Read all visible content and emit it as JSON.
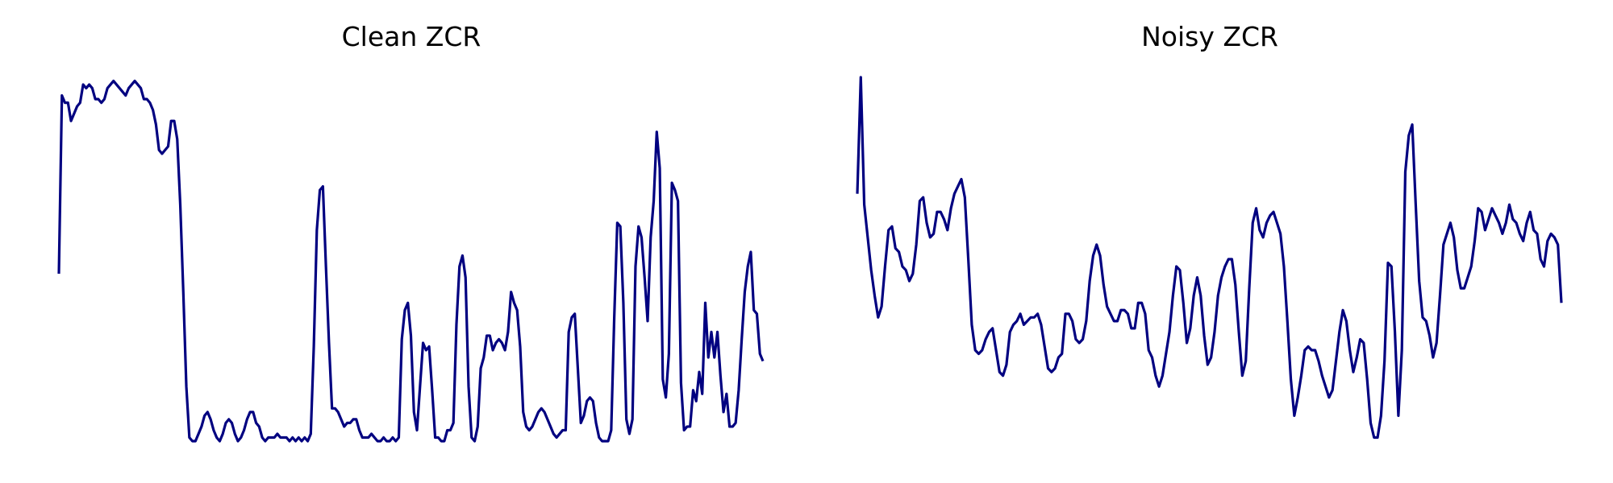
{
  "chart_data": [
    {
      "type": "line",
      "title": "Clean ZCR",
      "xlabel": "",
      "ylabel": "",
      "xlim": [
        0,
        199
      ],
      "ylim": [
        0,
        1
      ],
      "grid": false,
      "axes_visible": false,
      "line_color": "#000080",
      "series": [
        {
          "values": [
            0.46,
            0.95,
            0.93,
            0.93,
            0.88,
            0.9,
            0.92,
            0.93,
            0.98,
            0.97,
            0.98,
            0.97,
            0.94,
            0.94,
            0.93,
            0.94,
            0.97,
            0.98,
            0.99,
            0.98,
            0.97,
            0.96,
            0.95,
            0.97,
            0.98,
            0.99,
            0.98,
            0.97,
            0.94,
            0.94,
            0.93,
            0.91,
            0.87,
            0.8,
            0.79,
            0.8,
            0.81,
            0.88,
            0.88,
            0.83,
            0.65,
            0.41,
            0.15,
            0.01,
            0.0,
            0.0,
            0.02,
            0.04,
            0.07,
            0.08,
            0.06,
            0.03,
            0.01,
            0.0,
            0.02,
            0.05,
            0.06,
            0.05,
            0.02,
            0.0,
            0.01,
            0.03,
            0.06,
            0.08,
            0.08,
            0.05,
            0.04,
            0.01,
            0.0,
            0.01,
            0.01,
            0.01,
            0.02,
            0.01,
            0.01,
            0.01,
            0.0,
            0.01,
            0.0,
            0.01,
            0.0,
            0.01,
            0.0,
            0.02,
            0.26,
            0.58,
            0.69,
            0.7,
            0.48,
            0.27,
            0.09,
            0.09,
            0.08,
            0.06,
            0.04,
            0.05,
            0.05,
            0.06,
            0.06,
            0.03,
            0.01,
            0.01,
            0.01,
            0.02,
            0.01,
            0.0,
            0.0,
            0.01,
            0.0,
            0.0,
            0.01,
            0.0,
            0.01,
            0.28,
            0.36,
            0.38,
            0.29,
            0.08,
            0.03,
            0.15,
            0.27,
            0.25,
            0.26,
            0.14,
            0.01,
            0.01,
            0.0,
            0.0,
            0.03,
            0.03,
            0.05,
            0.32,
            0.48,
            0.51,
            0.45,
            0.15,
            0.01,
            0.0,
            0.04,
            0.2,
            0.23,
            0.29,
            0.29,
            0.25,
            0.27,
            0.28,
            0.27,
            0.25,
            0.3,
            0.41,
            0.38,
            0.36,
            0.26,
            0.08,
            0.04,
            0.03,
            0.04,
            0.06,
            0.08,
            0.09,
            0.08,
            0.06,
            0.04,
            0.02,
            0.01,
            0.02,
            0.03,
            0.03,
            0.3,
            0.34,
            0.35,
            0.2,
            0.05,
            0.07,
            0.11,
            0.12,
            0.11,
            0.05,
            0.01,
            0.0,
            0.0,
            0.0,
            0.03,
            0.34,
            0.6,
            0.59,
            0.38,
            0.06,
            0.02,
            0.06,
            0.48,
            0.59,
            0.56,
            0.45,
            0.33,
            0.56,
            0.66,
            0.85,
            0.75,
            0.17,
            0.12,
            0.24,
            0.71,
            0.69,
            0.66,
            0.16,
            0.03,
            0.04,
            0.04,
            0.14,
            0.11,
            0.19,
            0.13,
            0.38,
            0.23,
            0.3,
            0.23,
            0.3,
            0.18,
            0.08,
            0.13,
            0.04,
            0.04,
            0.05,
            0.14,
            0.28,
            0.41,
            0.48,
            0.52,
            0.36,
            0.35,
            0.24,
            0.22
          ]
        }
      ]
    },
    {
      "type": "line",
      "title": "Noisy ZCR",
      "xlabel": "",
      "ylabel": "",
      "xlim": [
        0,
        199
      ],
      "ylim": [
        0,
        1
      ],
      "grid": false,
      "axes_visible": false,
      "line_color": "#000080",
      "series": [
        {
          "values": [
            0.68,
            1.0,
            0.65,
            0.56,
            0.47,
            0.4,
            0.34,
            0.37,
            0.48,
            0.58,
            0.59,
            0.53,
            0.52,
            0.48,
            0.47,
            0.44,
            0.46,
            0.54,
            0.66,
            0.67,
            0.6,
            0.56,
            0.57,
            0.63,
            0.63,
            0.61,
            0.58,
            0.64,
            0.68,
            0.7,
            0.72,
            0.67,
            0.5,
            0.32,
            0.25,
            0.24,
            0.25,
            0.28,
            0.3,
            0.31,
            0.25,
            0.19,
            0.18,
            0.21,
            0.3,
            0.32,
            0.33,
            0.35,
            0.32,
            0.33,
            0.34,
            0.34,
            0.35,
            0.32,
            0.26,
            0.2,
            0.19,
            0.2,
            0.23,
            0.24,
            0.35,
            0.35,
            0.33,
            0.28,
            0.27,
            0.28,
            0.33,
            0.44,
            0.51,
            0.54,
            0.51,
            0.43,
            0.37,
            0.35,
            0.33,
            0.33,
            0.36,
            0.36,
            0.35,
            0.31,
            0.31,
            0.38,
            0.38,
            0.35,
            0.25,
            0.23,
            0.18,
            0.15,
            0.18,
            0.24,
            0.3,
            0.4,
            0.48,
            0.47,
            0.38,
            0.27,
            0.31,
            0.4,
            0.45,
            0.4,
            0.29,
            0.21,
            0.23,
            0.3,
            0.4,
            0.45,
            0.48,
            0.5,
            0.5,
            0.43,
            0.3,
            0.18,
            0.22,
            0.42,
            0.6,
            0.64,
            0.58,
            0.56,
            0.6,
            0.62,
            0.63,
            0.6,
            0.57,
            0.48,
            0.33,
            0.17,
            0.07,
            0.12,
            0.18,
            0.25,
            0.26,
            0.25,
            0.25,
            0.22,
            0.18,
            0.15,
            0.12,
            0.14,
            0.22,
            0.3,
            0.36,
            0.33,
            0.25,
            0.19,
            0.23,
            0.28,
            0.27,
            0.17,
            0.05,
            0.01,
            0.01,
            0.07,
            0.22,
            0.49,
            0.48,
            0.3,
            0.07,
            0.25,
            0.74,
            0.84,
            0.87,
            0.65,
            0.44,
            0.34,
            0.33,
            0.29,
            0.23,
            0.27,
            0.4,
            0.54,
            0.57,
            0.6,
            0.56,
            0.47,
            0.42,
            0.42,
            0.45,
            0.48,
            0.55,
            0.64,
            0.63,
            0.58,
            0.61,
            0.64,
            0.62,
            0.6,
            0.57,
            0.6,
            0.65,
            0.61,
            0.6,
            0.57,
            0.55,
            0.6,
            0.63,
            0.58,
            0.57,
            0.5,
            0.48,
            0.55,
            0.57,
            0.56,
            0.54,
            0.38
          ]
        }
      ]
    }
  ]
}
